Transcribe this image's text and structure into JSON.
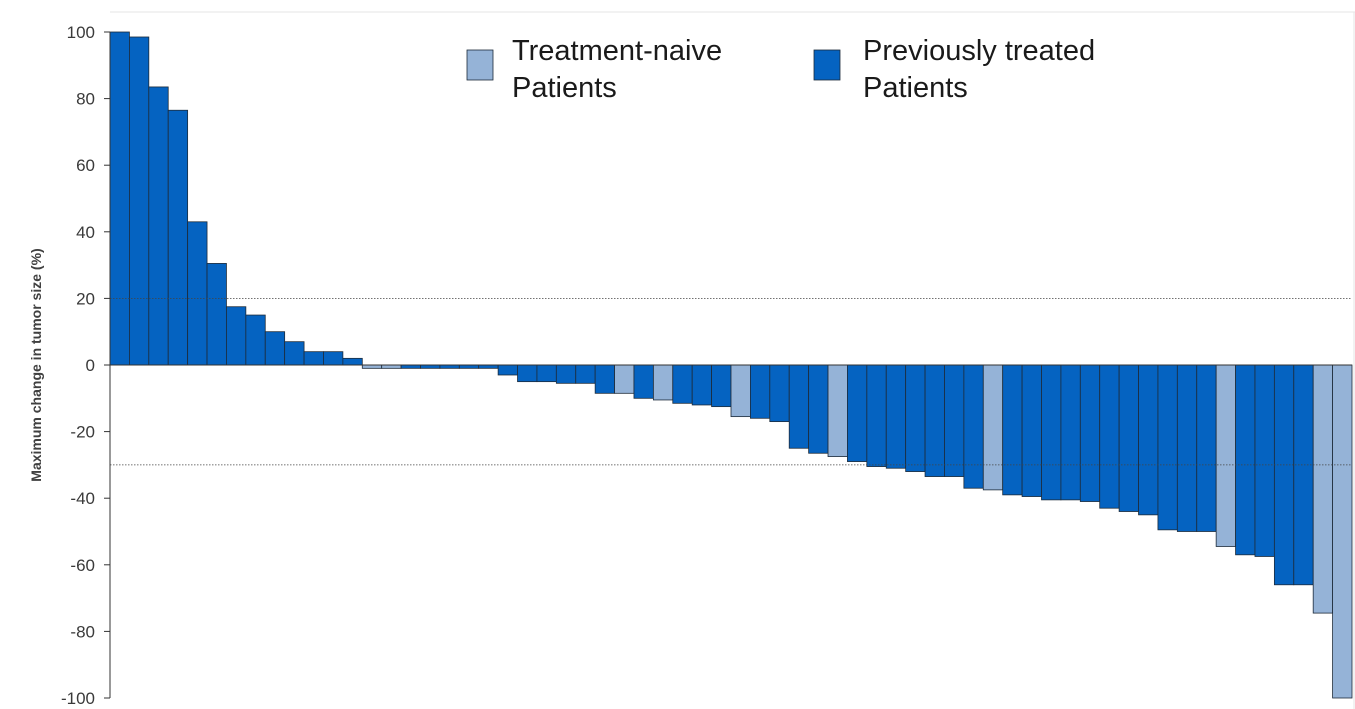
{
  "chart_data": {
    "type": "bar",
    "title": "",
    "xlabel": "",
    "ylabel": "Maximum change in tumor size (%)",
    "ylim": [
      -100,
      100
    ],
    "yticks": [
      100,
      80,
      60,
      40,
      20,
      0,
      -20,
      -40,
      -60,
      -80,
      -100
    ],
    "ytick_labels": [
      "100",
      "80",
      "60",
      "40",
      "20",
      "0",
      "-20",
      "-40",
      "-60",
      "-80",
      "-100"
    ],
    "reference_lines": [
      20,
      -30
    ],
    "grid": false,
    "legend_position": "top-center",
    "series": [
      {
        "name": "Treatment-naive Patients",
        "legend_lines": [
          "Treatment-naive",
          "Patients"
        ],
        "color": "#95b3d7"
      },
      {
        "name": "Previously treated Patients",
        "legend_lines": [
          "Previously treated",
          "Patients"
        ],
        "color": "#0563c1"
      }
    ],
    "values": [
      100,
      98.5,
      83.5,
      76.5,
      43,
      30.5,
      17.5,
      15,
      10,
      7,
      4,
      4,
      2,
      -1,
      -1,
      -1,
      -1,
      -1,
      -1,
      -1,
      -3,
      -5,
      -5,
      -5.5,
      -5.5,
      -8.5,
      -8.5,
      -10,
      -10.5,
      -11.5,
      -12,
      -12.5,
      -15.5,
      -16,
      -17,
      -25,
      -26.5,
      -27.5,
      -29,
      -30.5,
      -31,
      -32,
      -33.5,
      -33.5,
      -37,
      -37.5,
      -39,
      -39.5,
      -40.5,
      -40.5,
      -41,
      -43,
      -44,
      -45,
      -49.5,
      -50,
      -50,
      -54.5,
      -57,
      -57.5,
      -66,
      -66,
      -74.5,
      -100
    ],
    "groups": [
      1,
      1,
      1,
      1,
      1,
      1,
      1,
      1,
      1,
      1,
      1,
      1,
      1,
      0,
      0,
      1,
      1,
      1,
      1,
      1,
      1,
      1,
      1,
      1,
      1,
      1,
      0,
      1,
      0,
      1,
      1,
      1,
      0,
      1,
      1,
      1,
      1,
      0,
      1,
      1,
      1,
      1,
      1,
      1,
      1,
      0,
      1,
      1,
      1,
      1,
      1,
      1,
      1,
      1,
      1,
      1,
      1,
      0,
      1,
      1,
      1,
      1,
      0,
      0
    ]
  }
}
